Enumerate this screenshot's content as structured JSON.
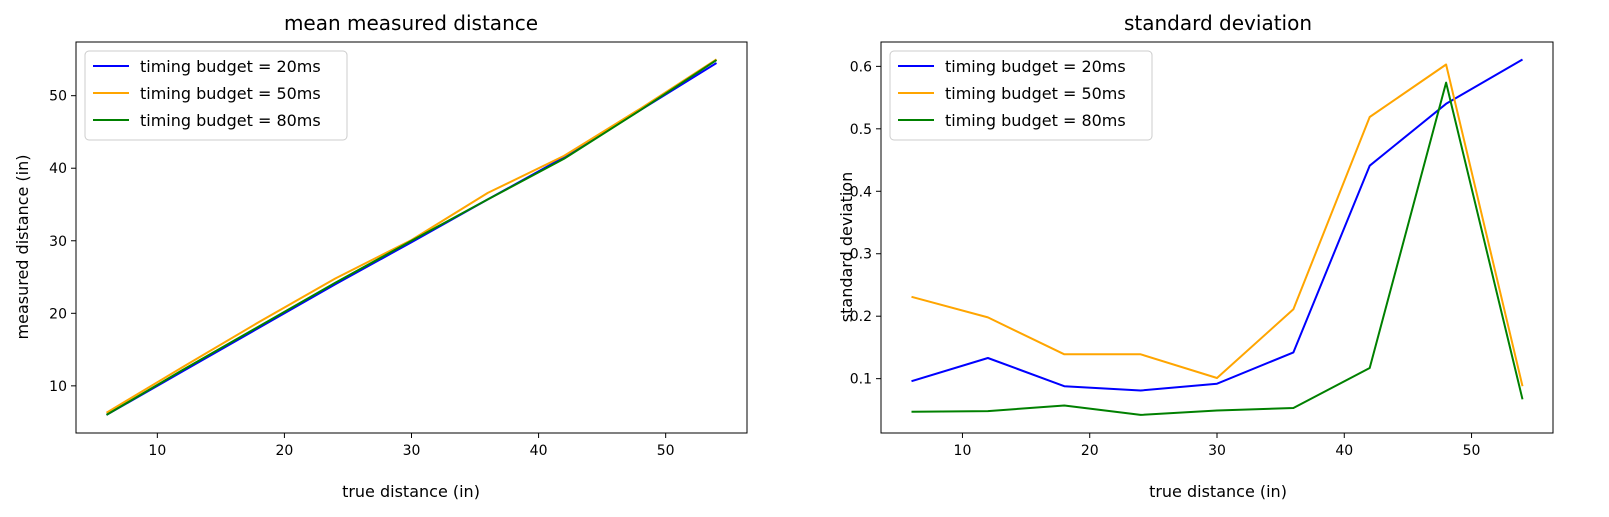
{
  "chart_data": [
    {
      "type": "line",
      "title": "mean measured distance",
      "xlabel": "true distance (in)",
      "ylabel": "measured distance (in)",
      "xlim": [
        3.6,
        56.4
      ],
      "ylim": [
        3.5,
        57.4
      ],
      "xticks": [
        10,
        20,
        30,
        40,
        50
      ],
      "yticks": [
        10,
        20,
        30,
        40,
        50
      ],
      "legend_position": "upper-left",
      "x": [
        6,
        12,
        18,
        24,
        30,
        36,
        42,
        48,
        54
      ],
      "series": [
        {
          "name": "timing budget = 20ms",
          "color": "#0000ff",
          "values": [
            6.0,
            12.0,
            18.0,
            24.0,
            29.8,
            35.7,
            41.5,
            48.0,
            54.5
          ]
        },
        {
          "name": "timing budget = 50ms",
          "color": "#ffa500",
          "values": [
            6.3,
            12.6,
            18.8,
            24.8,
            30.1,
            36.6,
            41.7,
            48.2,
            55.0
          ]
        },
        {
          "name": "timing budget = 80ms",
          "color": "#008000",
          "values": [
            6.0,
            12.2,
            18.2,
            24.2,
            30.0,
            35.7,
            41.3,
            48.0,
            54.9
          ]
        }
      ]
    },
    {
      "type": "line",
      "title": "standard deviation",
      "xlabel": "true distance (in)",
      "ylabel": "standard deviation",
      "xlim": [
        3.6,
        56.4
      ],
      "ylim": [
        0.013,
        0.639
      ],
      "xticks": [
        10,
        20,
        30,
        40,
        50
      ],
      "yticks": [
        0.1,
        0.2,
        0.3,
        0.4,
        0.5,
        0.6
      ],
      "legend_position": "upper-left",
      "x": [
        6,
        12,
        18,
        24,
        30,
        36,
        42,
        48,
        54
      ],
      "series": [
        {
          "name": "timing budget = 20ms",
          "color": "#0000ff",
          "values": [
            0.096,
            0.133,
            0.088,
            0.081,
            0.092,
            0.142,
            0.441,
            0.54,
            0.611
          ]
        },
        {
          "name": "timing budget = 50ms",
          "color": "#ffa500",
          "values": [
            0.231,
            0.198,
            0.139,
            0.139,
            0.101,
            0.211,
            0.519,
            0.603,
            0.088
          ]
        },
        {
          "name": "timing budget = 80ms",
          "color": "#008000",
          "values": [
            0.047,
            0.048,
            0.057,
            0.042,
            0.049,
            0.053,
            0.117,
            0.574,
            0.067
          ]
        }
      ]
    }
  ]
}
